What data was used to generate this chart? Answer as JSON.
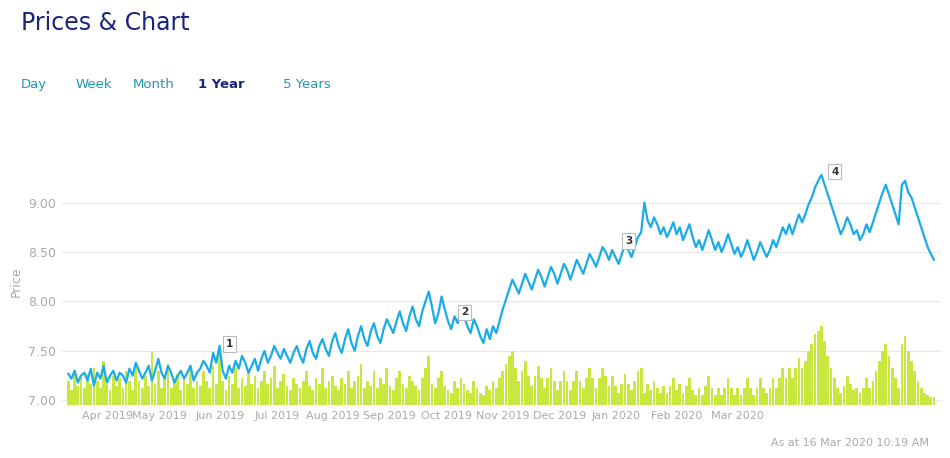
{
  "title": "Prices & Chart",
  "nav_items": [
    "Day",
    "Week",
    "Month",
    "1 Year",
    "5 Years"
  ],
  "nav_active": "1 Year",
  "ylabel": "Price",
  "footer_text": "As at 16 Mar 2020 10:19 AM",
  "ylim": [
    6.95,
    9.45
  ],
  "yticks": [
    7.0,
    7.5,
    8.0,
    8.5,
    9.0
  ],
  "background_color": "#ffffff",
  "line_color": "#1aace8",
  "bar_color": "#c8e840",
  "grid_color": "#e8e8e8",
  "title_color": "#1a237e",
  "nav_color": "#2196b0",
  "nav_active_color": "#1a237e",
  "axis_label_color": "#aaaaaa",
  "footer_color": "#aaaaaa",
  "underline_color": "#aacc00",
  "line_width": 1.6,
  "price_data": [
    7.27,
    7.22,
    7.3,
    7.18,
    7.25,
    7.28,
    7.2,
    7.32,
    7.15,
    7.28,
    7.22,
    7.35,
    7.18,
    7.25,
    7.3,
    7.2,
    7.28,
    7.25,
    7.18,
    7.32,
    7.25,
    7.38,
    7.3,
    7.22,
    7.28,
    7.35,
    7.2,
    7.3,
    7.42,
    7.28,
    7.22,
    7.35,
    7.28,
    7.18,
    7.25,
    7.3,
    7.22,
    7.28,
    7.35,
    7.2,
    7.28,
    7.32,
    7.4,
    7.35,
    7.28,
    7.48,
    7.38,
    7.55,
    7.3,
    7.22,
    7.35,
    7.28,
    7.4,
    7.32,
    7.45,
    7.38,
    7.28,
    7.35,
    7.42,
    7.3,
    7.42,
    7.5,
    7.38,
    7.45,
    7.55,
    7.48,
    7.42,
    7.52,
    7.45,
    7.38,
    7.48,
    7.55,
    7.45,
    7.38,
    7.52,
    7.6,
    7.48,
    7.42,
    7.55,
    7.62,
    7.52,
    7.45,
    7.6,
    7.68,
    7.55,
    7.48,
    7.62,
    7.72,
    7.58,
    7.5,
    7.65,
    7.75,
    7.62,
    7.55,
    7.7,
    7.78,
    7.65,
    7.58,
    7.72,
    7.82,
    7.75,
    7.68,
    7.8,
    7.9,
    7.78,
    7.7,
    7.85,
    7.95,
    7.82,
    7.75,
    7.9,
    8.0,
    8.1,
    7.95,
    7.78,
    7.88,
    8.05,
    7.92,
    7.8,
    7.72,
    7.85,
    7.78,
    7.92,
    7.85,
    7.75,
    7.68,
    7.82,
    7.75,
    7.65,
    7.58,
    7.72,
    7.62,
    7.75,
    7.68,
    7.8,
    7.92,
    8.02,
    8.12,
    8.22,
    8.15,
    8.08,
    8.18,
    8.28,
    8.2,
    8.12,
    8.22,
    8.32,
    8.25,
    8.15,
    8.25,
    8.35,
    8.28,
    8.18,
    8.28,
    8.38,
    8.32,
    8.22,
    8.32,
    8.42,
    8.35,
    8.28,
    8.38,
    8.48,
    8.42,
    8.35,
    8.45,
    8.55,
    8.5,
    8.42,
    8.52,
    8.45,
    8.38,
    8.48,
    8.58,
    8.52,
    8.45,
    8.55,
    8.65,
    8.7,
    9.0,
    8.82,
    8.75,
    8.85,
    8.78,
    8.68,
    8.75,
    8.65,
    8.72,
    8.8,
    8.68,
    8.75,
    8.62,
    8.7,
    8.78,
    8.65,
    8.55,
    8.62,
    8.52,
    8.62,
    8.72,
    8.62,
    8.52,
    8.6,
    8.5,
    8.58,
    8.68,
    8.58,
    8.48,
    8.55,
    8.45,
    8.52,
    8.62,
    8.52,
    8.42,
    8.5,
    8.6,
    8.52,
    8.45,
    8.52,
    8.62,
    8.55,
    8.65,
    8.75,
    8.68,
    8.78,
    8.68,
    8.78,
    8.88,
    8.8,
    8.88,
    8.98,
    9.05,
    9.15,
    9.22,
    9.28,
    9.18,
    9.08,
    8.98,
    8.88,
    8.78,
    8.68,
    8.75,
    8.85,
    8.78,
    8.68,
    8.72,
    8.62,
    8.68,
    8.78,
    8.7,
    8.8,
    8.9,
    9.0,
    9.1,
    9.18,
    9.08,
    8.98,
    8.88,
    8.78,
    9.18,
    9.22,
    9.1,
    9.05,
    8.95,
    8.85,
    8.75,
    8.65,
    8.55,
    8.48,
    8.42
  ],
  "bar_heights": [
    0.25,
    0.15,
    0.35,
    0.2,
    0.28,
    0.18,
    0.32,
    0.22,
    0.38,
    0.25,
    0.18,
    0.45,
    0.22,
    0.15,
    0.3,
    0.2,
    0.28,
    0.18,
    0.35,
    0.25,
    0.15,
    0.4,
    0.25,
    0.18,
    0.3,
    0.2,
    0.55,
    0.22,
    0.35,
    0.18,
    0.28,
    0.42,
    0.18,
    0.25,
    0.32,
    0.15,
    0.28,
    0.22,
    0.38,
    0.18,
    0.25,
    0.2,
    0.35,
    0.25,
    0.18,
    0.4,
    0.22,
    0.55,
    0.25,
    0.15,
    0.3,
    0.22,
    0.38,
    0.18,
    0.28,
    0.2,
    0.35,
    0.22,
    0.3,
    0.18,
    0.25,
    0.35,
    0.22,
    0.28,
    0.4,
    0.18,
    0.25,
    0.32,
    0.2,
    0.15,
    0.28,
    0.22,
    0.18,
    0.25,
    0.35,
    0.2,
    0.15,
    0.28,
    0.22,
    0.38,
    0.18,
    0.25,
    0.3,
    0.2,
    0.15,
    0.28,
    0.22,
    0.35,
    0.18,
    0.25,
    0.3,
    0.42,
    0.18,
    0.25,
    0.2,
    0.35,
    0.18,
    0.28,
    0.22,
    0.38,
    0.2,
    0.15,
    0.28,
    0.35,
    0.22,
    0.18,
    0.3,
    0.25,
    0.2,
    0.15,
    0.28,
    0.38,
    0.5,
    0.22,
    0.18,
    0.28,
    0.35,
    0.2,
    0.15,
    0.12,
    0.25,
    0.18,
    0.28,
    0.22,
    0.15,
    0.12,
    0.25,
    0.18,
    0.12,
    0.1,
    0.2,
    0.15,
    0.25,
    0.18,
    0.28,
    0.35,
    0.42,
    0.5,
    0.55,
    0.38,
    0.25,
    0.35,
    0.45,
    0.3,
    0.2,
    0.3,
    0.4,
    0.28,
    0.18,
    0.28,
    0.38,
    0.25,
    0.15,
    0.25,
    0.35,
    0.25,
    0.15,
    0.25,
    0.35,
    0.25,
    0.18,
    0.28,
    0.38,
    0.28,
    0.18,
    0.28,
    0.38,
    0.3,
    0.2,
    0.3,
    0.2,
    0.12,
    0.22,
    0.32,
    0.22,
    0.15,
    0.25,
    0.35,
    0.38,
    0.12,
    0.22,
    0.15,
    0.25,
    0.18,
    0.12,
    0.2,
    0.12,
    0.2,
    0.28,
    0.15,
    0.22,
    0.12,
    0.2,
    0.28,
    0.15,
    0.1,
    0.18,
    0.1,
    0.2,
    0.3,
    0.18,
    0.1,
    0.18,
    0.1,
    0.18,
    0.28,
    0.18,
    0.1,
    0.18,
    0.1,
    0.18,
    0.28,
    0.18,
    0.1,
    0.18,
    0.28,
    0.18,
    0.12,
    0.18,
    0.28,
    0.18,
    0.28,
    0.38,
    0.28,
    0.38,
    0.28,
    0.38,
    0.48,
    0.38,
    0.45,
    0.55,
    0.62,
    0.72,
    0.75,
    0.8,
    0.65,
    0.5,
    0.38,
    0.28,
    0.18,
    0.12,
    0.2,
    0.3,
    0.22,
    0.15,
    0.18,
    0.12,
    0.18,
    0.28,
    0.18,
    0.25,
    0.35,
    0.45,
    0.55,
    0.62,
    0.5,
    0.38,
    0.28,
    0.18,
    0.62,
    0.7,
    0.55,
    0.45,
    0.35,
    0.25,
    0.18,
    0.12,
    0.1,
    0.08,
    0.08
  ],
  "annotations": [
    {
      "index": 45,
      "label": "1"
    },
    {
      "index": 118,
      "label": "2"
    },
    {
      "index": 169,
      "label": "3"
    },
    {
      "index": 233,
      "label": "4"
    }
  ],
  "month_labels": [
    "Apr 2019",
    "May 2019",
    "Jun 2019",
    "Jul 2019",
    "Aug 2019",
    "Sep 2019",
    "Oct 2019",
    "Nov 2019",
    "Dec 2019",
    "Jan 2020",
    "Feb 2020",
    "Mar 2020"
  ],
  "month_fracs": [
    0.045,
    0.105,
    0.175,
    0.24,
    0.305,
    0.37,
    0.435,
    0.5,
    0.565,
    0.63,
    0.7,
    0.77
  ]
}
